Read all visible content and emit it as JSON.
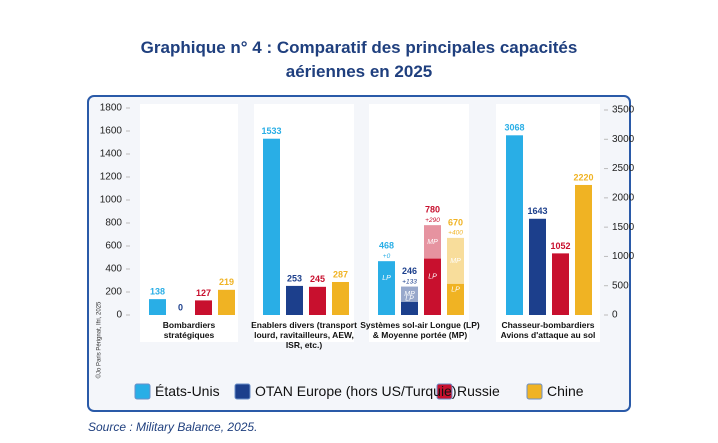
{
  "chart_data": {
    "type": "bar",
    "title": "Graphique n° 4 : Comparatif des principales capacités aériennes en 2025",
    "categories": [
      "Bombardiers stratégiques",
      "Enablers divers (transport lourd, ravitailleurs, AEW, ISR, etc.)",
      "Systèmes sol-air Longue (LP) & Moyenne portée (MP)",
      "Chasseur-bombardiers Avions d'attaque au sol"
    ],
    "category_axes": [
      "y",
      "y",
      "y",
      "y2"
    ],
    "series": [
      {
        "name": "États-Unis",
        "color": "#29aee6",
        "values": [
          138,
          1533,
          468,
          3068
        ],
        "mp_values": [
          null,
          null,
          0,
          null
        ],
        "mp_value_labels": [
          null,
          null,
          "+0",
          null
        ]
      },
      {
        "name": "OTAN Europe (hors US/Turquie)",
        "color": "#1c3f8c",
        "values": [
          0,
          253,
          246,
          1643
        ],
        "mp_values": [
          null,
          null,
          133,
          null
        ],
        "mp_value_labels": [
          null,
          null,
          "+133",
          null
        ]
      },
      {
        "name": "Russie",
        "color": "#c8102e",
        "values": [
          127,
          245,
          780,
          1052
        ],
        "mp_values": [
          null,
          null,
          290,
          null
        ],
        "mp_value_labels": [
          null,
          null,
          "+290",
          null
        ]
      },
      {
        "name": "Chine",
        "color": "#f0b323",
        "values": [
          219,
          287,
          670,
          2220
        ],
        "mp_values": [
          null,
          null,
          400,
          null
        ],
        "mp_value_labels": [
          null,
          null,
          "+400",
          null
        ]
      }
    ],
    "segment_labels": [
      "LP",
      "MP"
    ],
    "ylim": [
      0,
      1800
    ],
    "yticks": [
      0,
      200,
      400,
      600,
      800,
      1000,
      1200,
      1400,
      1600,
      1800
    ],
    "y2lim": [
      0,
      3500
    ],
    "y2ticks": [
      0,
      500,
      1000,
      1500,
      2000,
      2500,
      3000,
      3500
    ],
    "credit": "©Jo Paris Pérignat, Ifri, 2025",
    "source": "Source : Military Balance, 2025."
  }
}
